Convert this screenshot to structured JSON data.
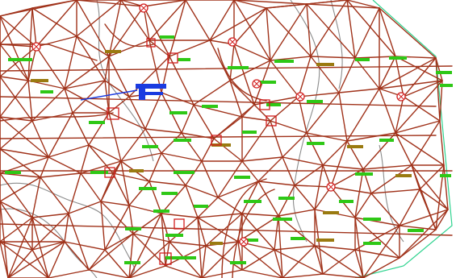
{
  "map": {
    "style": {
      "background": "#ffffff",
      "tin_edge_color": "#a0321a",
      "contour_color": "#8c8c8c",
      "boundary_color": "#2fd38f",
      "point_label_color": "#2ec816",
      "elevation_label_color": "#9a7a10",
      "marker_color": "#d21e1e",
      "selection_color": "#1a3be0"
    },
    "text_labels": []
  }
}
